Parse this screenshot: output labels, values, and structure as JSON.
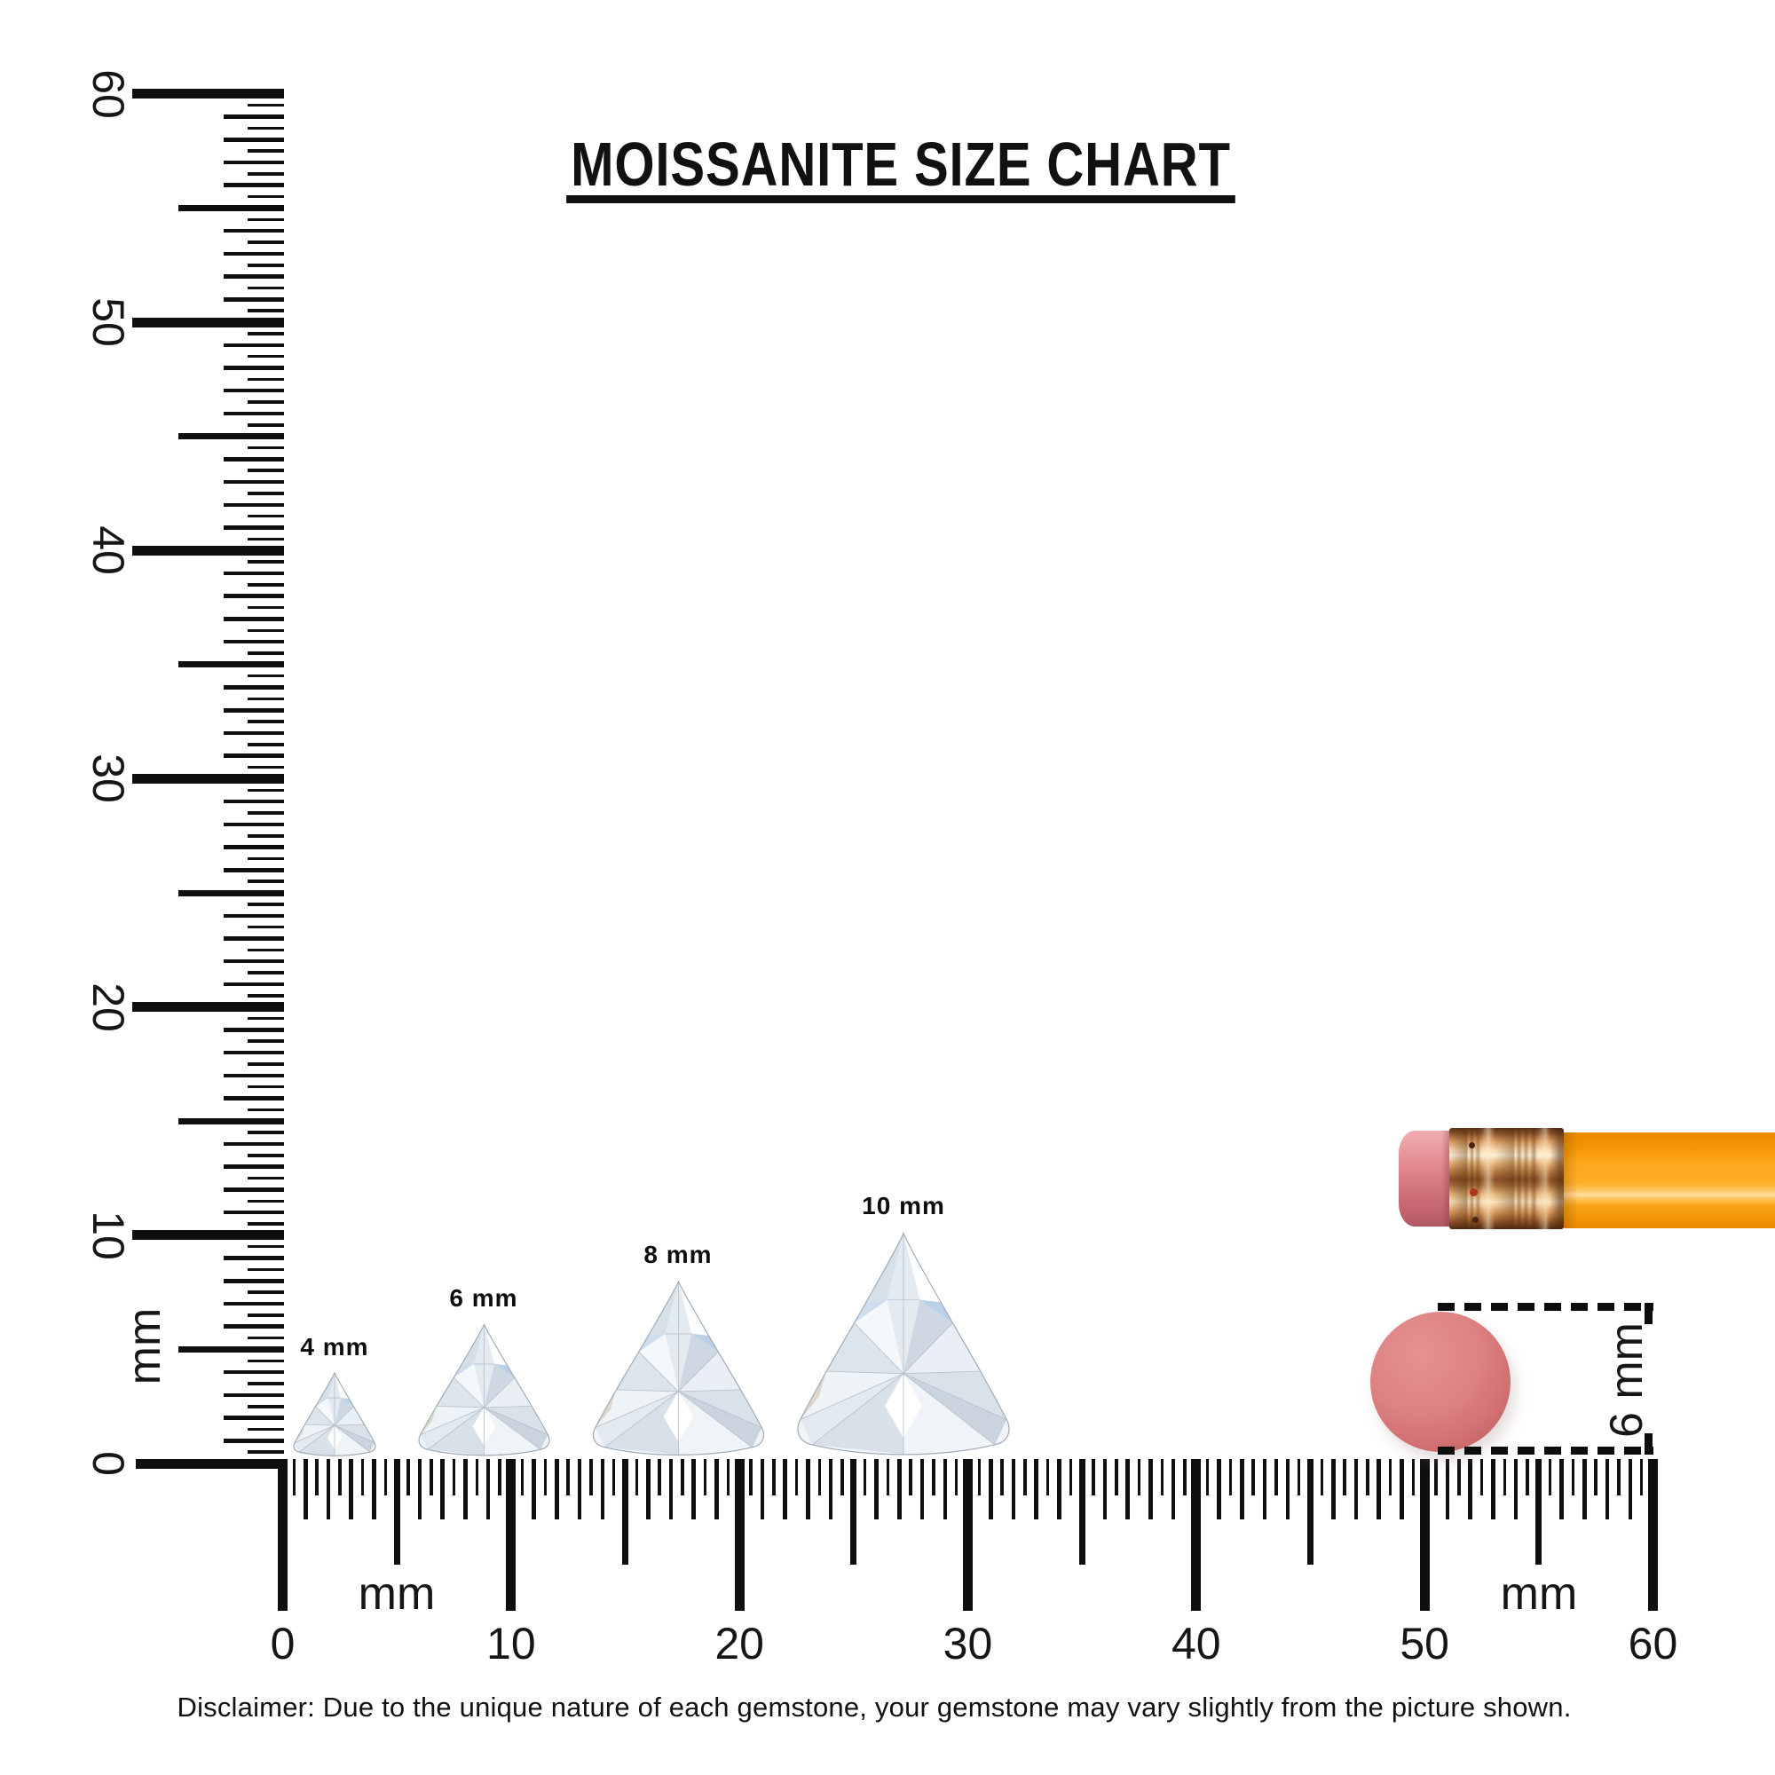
{
  "title": "MOISSANITE SIZE CHART",
  "rulers": {
    "unit": "mm",
    "horizontal": {
      "labels": [
        "0",
        "10",
        "20",
        "30",
        "40",
        "50",
        "60"
      ],
      "unit_labels": [
        "mm",
        "mm"
      ],
      "min": 0,
      "max": 60,
      "tick_step_mm": 0.5
    },
    "vertical": {
      "labels": [
        "0",
        "10",
        "20",
        "30",
        "40",
        "50",
        "60"
      ],
      "unit_label": "mm",
      "min": 0,
      "max": 60,
      "tick_step_mm": 0.5
    }
  },
  "gems": {
    "items": [
      {
        "label": "4 mm",
        "size_mm": 4
      },
      {
        "label": "6 mm",
        "size_mm": 6
      },
      {
        "label": "8 mm",
        "size_mm": 8
      },
      {
        "label": "10 mm",
        "size_mm": 10
      }
    ]
  },
  "eraser_measurement": {
    "label": "6 mm",
    "diameter_mm": 6
  },
  "colors": {
    "ink": "#111111",
    "pencil_body_orange": "#f9a10d",
    "ferrule_copper": "#c98a52",
    "pencil_eraser_pink": "#dd8187",
    "round_eraser_salmon": "#d87776"
  },
  "disclaimer": "Disclaimer: Due to the unique nature of each gemstone, your gemstone may vary slightly from the picture shown."
}
